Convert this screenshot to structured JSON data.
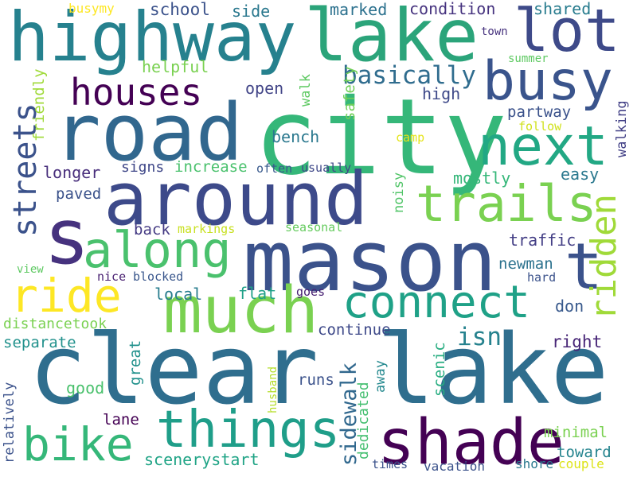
{
  "words": [
    {
      "text": "clear lake",
      "color": "#2f6e8e"
    },
    {
      "text": "city",
      "color": "#35b779"
    },
    {
      "text": "mason",
      "color": "#3b528b"
    },
    {
      "text": "road",
      "color": "#31678e"
    },
    {
      "text": "highway",
      "color": "#26818e"
    },
    {
      "text": "lake",
      "color": "#2ba47a"
    },
    {
      "text": "around",
      "color": "#3d4a8a"
    },
    {
      "text": "lot",
      "color": "#3e4a89"
    },
    {
      "text": "busy",
      "color": "#3a548c"
    },
    {
      "text": "much",
      "color": "#7ad151"
    },
    {
      "text": "s",
      "color": "#46327e"
    },
    {
      "text": "along",
      "color": "#4ac16d"
    },
    {
      "text": "next",
      "color": "#22a884"
    },
    {
      "text": "t",
      "color": "#3b528b"
    },
    {
      "text": "shade",
      "color": "#440154"
    },
    {
      "text": "things",
      "color": "#1f9e89"
    },
    {
      "text": "trails",
      "color": "#7ad151"
    },
    {
      "text": "connect",
      "color": "#1fa187"
    },
    {
      "text": "ride",
      "color": "#fde725"
    },
    {
      "text": "bike",
      "color": "#35b779"
    },
    {
      "text": "houses",
      "color": "#440154"
    },
    {
      "text": "streets",
      "color": "#3b528b"
    },
    {
      "text": "ridden",
      "color": "#a0da39"
    },
    {
      "text": "sidewalk",
      "color": "#31688e"
    },
    {
      "text": "basically",
      "color": "#2f6c8e"
    },
    {
      "text": "isn",
      "color": "#26828e"
    },
    {
      "text": "busymy",
      "color": "#fde725"
    },
    {
      "text": "school",
      "color": "#3b528b"
    },
    {
      "text": "side",
      "color": "#2a788e"
    },
    {
      "text": "marked",
      "color": "#2c718e"
    },
    {
      "text": "condition",
      "color": "#46337f"
    },
    {
      "text": "shared",
      "color": "#287c8e"
    },
    {
      "text": "town",
      "color": "#46327e"
    },
    {
      "text": "summer",
      "color": "#5ec962"
    },
    {
      "text": "helpful",
      "color": "#7ad151"
    },
    {
      "text": "open",
      "color": "#414487"
    },
    {
      "text": "walk",
      "color": "#5ec962"
    },
    {
      "text": "safety",
      "color": "#70cf57"
    },
    {
      "text": "high",
      "color": "#3e4989"
    },
    {
      "text": "partway",
      "color": "#3b528b"
    },
    {
      "text": "follow",
      "color": "#d0e11c"
    },
    {
      "text": "friendly",
      "color": "#a0da39"
    },
    {
      "text": "camp",
      "color": "#e5e419"
    },
    {
      "text": "walking",
      "color": "#424086"
    },
    {
      "text": "bench",
      "color": "#2a788e"
    },
    {
      "text": "longer",
      "color": "#472d7b"
    },
    {
      "text": "signs",
      "color": "#3f4788"
    },
    {
      "text": "increase",
      "color": "#4ac16d"
    },
    {
      "text": "often",
      "color": "#38598c"
    },
    {
      "text": "usually",
      "color": "#3f4889"
    },
    {
      "text": "mostly",
      "color": "#35b779"
    },
    {
      "text": "easy",
      "color": "#2a788e"
    },
    {
      "text": "paved",
      "color": "#3b528b"
    },
    {
      "text": "noisy",
      "color": "#52c569"
    },
    {
      "text": "back",
      "color": "#443a83"
    },
    {
      "text": "markings",
      "color": "#c8e020"
    },
    {
      "text": "seasonal",
      "color": "#65cb5e"
    },
    {
      "text": "traffic",
      "color": "#433e85"
    },
    {
      "text": "view",
      "color": "#5ec962"
    },
    {
      "text": "nice",
      "color": "#481f70"
    },
    {
      "text": "blocked",
      "color": "#39568c"
    },
    {
      "text": "newman",
      "color": "#2c728e"
    },
    {
      "text": "hard",
      "color": "#3b528b"
    },
    {
      "text": "local",
      "color": "#287d8e"
    },
    {
      "text": "flat",
      "color": "#1fa088"
    },
    {
      "text": "goes",
      "color": "#482173"
    },
    {
      "text": "don",
      "color": "#38598c"
    },
    {
      "text": "distancetook",
      "color": "#7ad151"
    },
    {
      "text": "continue",
      "color": "#3e4989"
    },
    {
      "text": "separate",
      "color": "#21918c"
    },
    {
      "text": "great",
      "color": "#21918c"
    },
    {
      "text": "right",
      "color": "#482677"
    },
    {
      "text": "husband",
      "color": "#b5de2b"
    },
    {
      "text": "away",
      "color": "#23888e"
    },
    {
      "text": "scenic",
      "color": "#27ad81"
    },
    {
      "text": "relatively",
      "color": "#3b528b"
    },
    {
      "text": "good",
      "color": "#4ac16d"
    },
    {
      "text": "runs",
      "color": "#3b528b"
    },
    {
      "text": "dedicated",
      "color": "#44bf70"
    },
    {
      "text": "lane",
      "color": "#440154"
    },
    {
      "text": "minimal",
      "color": "#7ad151"
    },
    {
      "text": "toward",
      "color": "#25848e"
    },
    {
      "text": "scenerystart",
      "color": "#20a486"
    },
    {
      "text": "times",
      "color": "#3b528b"
    },
    {
      "text": "vacation",
      "color": "#3b528b"
    },
    {
      "text": "shore",
      "color": "#2a788e"
    },
    {
      "text": "couple",
      "color": "#dde318"
    }
  ]
}
